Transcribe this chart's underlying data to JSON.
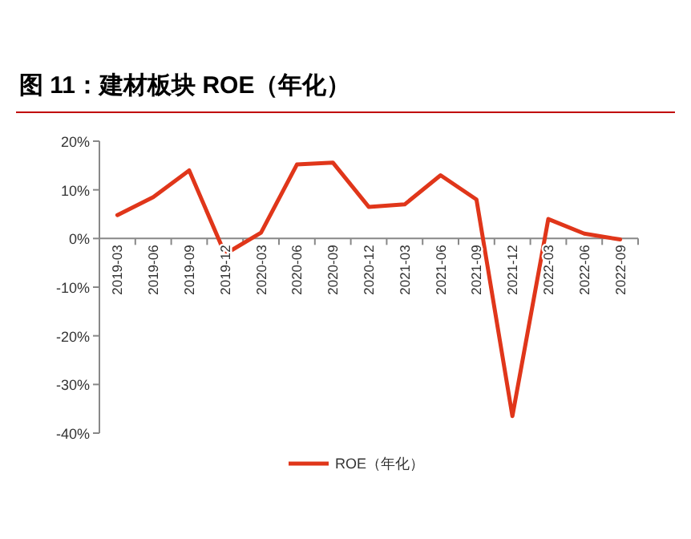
{
  "chart_data": {
    "type": "line",
    "title": "图 11：建材板块 ROE（年化）",
    "categories": [
      "2019-03",
      "2019-06",
      "2019-09",
      "2019-12",
      "2020-03",
      "2020-06",
      "2020-09",
      "2020-12",
      "2021-03",
      "2021-06",
      "2021-09",
      "2021-12",
      "2022-03",
      "2022-06",
      "2022-09"
    ],
    "series": [
      {
        "name": "ROE（年化）",
        "color": "#e0361a",
        "values": [
          4.8,
          8.5,
          14,
          -3.2,
          1.2,
          15.2,
          15.6,
          6.5,
          7,
          13,
          8,
          -36.5,
          4,
          1,
          -0.2
        ]
      }
    ],
    "ylim": [
      -40,
      20
    ],
    "yticks": [
      {
        "value": -40,
        "label": "-40%"
      },
      {
        "value": -30,
        "label": "-30%"
      },
      {
        "value": -20,
        "label": "-20%"
      },
      {
        "value": -10,
        "label": "-10%"
      },
      {
        "value": 0,
        "label": "0%"
      },
      {
        "value": 10,
        "label": "10%"
      },
      {
        "value": 20,
        "label": "20%"
      }
    ],
    "legend": "bottom",
    "grid": false,
    "marker": "none",
    "line_style": "solid"
  }
}
